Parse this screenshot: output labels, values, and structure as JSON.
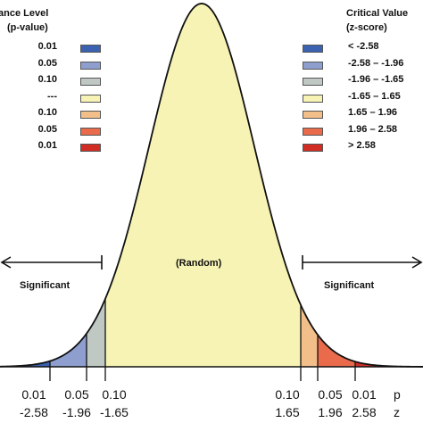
{
  "left_legend": {
    "title_line1": "ance Level",
    "title_line2": "(p-value)",
    "rows": [
      {
        "label": "0.01",
        "color": "#3a62b0"
      },
      {
        "label": "0.05",
        "color": "#8e9fcf"
      },
      {
        "label": "0.10",
        "color": "#c0c8c3"
      },
      {
        "label": "---",
        "color": "#f7f3b4"
      },
      {
        "label": "0.10",
        "color": "#f2bf8a"
      },
      {
        "label": "0.05",
        "color": "#ea6b4c"
      },
      {
        "label": "0.01",
        "color": "#d22d25"
      }
    ]
  },
  "right_legend": {
    "title_line1": "Critical Value",
    "title_line2": "(z-score)",
    "rows": [
      {
        "label": "< -2.58",
        "color": "#3a62b0"
      },
      {
        "label": "-2.58 – -1.96",
        "color": "#8e9fcf"
      },
      {
        "label": "-1.96 – -1.65",
        "color": "#c0c8c3"
      },
      {
        "label": "-1.65 – 1.65",
        "color": "#f7f3b4"
      },
      {
        "label": "1.65 – 1.96",
        "color": "#f2bf8a"
      },
      {
        "label": "1.96 – 2.58",
        "color": "#ea6b4c"
      },
      {
        "label": "> 2.58",
        "color": "#d22d25"
      }
    ]
  },
  "regions": {
    "center_label": "(Random)",
    "left_label": "Significant",
    "right_label": "Significant"
  },
  "axis": {
    "left": [
      {
        "p": "0.01",
        "z": "-2.58"
      },
      {
        "p": "0.05",
        "z": "-1.96"
      },
      {
        "p": "0.10",
        "z": "-1.65"
      }
    ],
    "right": [
      {
        "p": "0.10",
        "z": "1.65"
      },
      {
        "p": "0.05",
        "z": "1.96"
      },
      {
        "p": "0.01",
        "z": "2.58"
      }
    ],
    "cut_label_1": "p",
    "cut_label_2": "z"
  },
  "curve": {
    "fills": {
      "center": "#f7f3b4",
      "left_tail": "#3a62b0",
      "left_mid": "#8e9fcf",
      "left_inner": "#c0c8c3",
      "right_inner": "#f2bf8a",
      "right_mid": "#ea6b4c",
      "right_tail": "#d22d25"
    }
  }
}
